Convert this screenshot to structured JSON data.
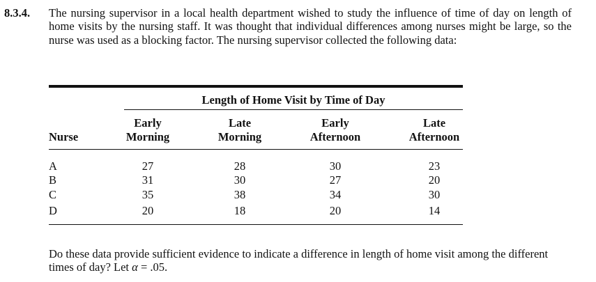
{
  "problem": {
    "number": "8.3.4.",
    "text": "The nursing supervisor in a local health department wished to study the influence of time of day on length of home visits by the nursing staff. It was thought that individual differences among nurses might be large, so the nurse was used as a blocking factor. The nursing supervisor collected the following data:"
  },
  "table": {
    "spanner": "Length of Home Visit by Time of Day",
    "row_header": "Nurse",
    "columns": [
      {
        "line1": "Early",
        "line2": "Morning"
      },
      {
        "line1": "Late",
        "line2": "Morning"
      },
      {
        "line1": "Early",
        "line2": "Afternoon"
      },
      {
        "line1": "Late",
        "line2": "Afternoon"
      }
    ],
    "rows": [
      {
        "nurse": "A",
        "values": [
          "27",
          "28",
          "30",
          "23"
        ]
      },
      {
        "nurse": "B",
        "values": [
          "31",
          "30",
          "27",
          "20"
        ]
      },
      {
        "nurse": "C",
        "values": [
          "35",
          "38",
          "34",
          "30"
        ]
      },
      {
        "nurse": "D",
        "values": [
          "20",
          "18",
          "20",
          "14"
        ]
      }
    ]
  },
  "question": {
    "text_before": "Do these data provide sufficient evidence to indicate a difference in length of home visit among the different times of day? Let ",
    "symbol": "α",
    "text_after": " = .05."
  }
}
